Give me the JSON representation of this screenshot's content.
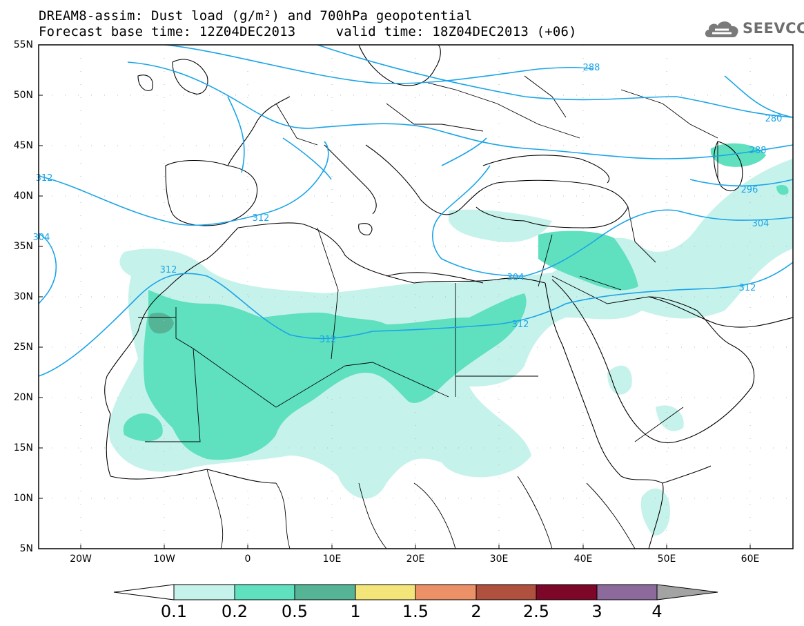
{
  "title": {
    "line1": "DREAM8-assim: Dust load (g/m²) and 700hPa geopotential",
    "line2": "Forecast base time: 12Z04DEC2013     valid time: 18Z04DEC2013 (+06)"
  },
  "logo": {
    "text": "SEEVCCC",
    "icon": "cloud-icon"
  },
  "axes": {
    "lat_labels": [
      "55N",
      "50N",
      "45N",
      "40N",
      "35N",
      "30N",
      "25N",
      "20N",
      "15N",
      "10N",
      "5N"
    ],
    "lon_labels": [
      "20W",
      "10W",
      "0",
      "10E",
      "20E",
      "30E",
      "40E",
      "50E",
      "60E"
    ]
  },
  "contour_labels": [
    "288",
    "280",
    "288",
    "296",
    "304",
    "312",
    "312",
    "312",
    "312",
    "312",
    "304",
    "312",
    "304"
  ],
  "colorbar": {
    "labels": [
      "0.1",
      "0.2",
      "0.5",
      "1",
      "1.5",
      "2",
      "2.5",
      "3",
      "4"
    ],
    "colors": [
      "#c6f2ec",
      "#5fe0bf",
      "#55b496",
      "#f3e57a",
      "#ec9067",
      "#b0503e",
      "#7d0728",
      "#8c6b9c",
      "#a3a3a3"
    ]
  },
  "colors": {
    "contour": "#1aa4e8",
    "dust_low": "#c6f2ec",
    "dust_mid": "#5fe0bf",
    "dust_high": "#55b496"
  }
}
